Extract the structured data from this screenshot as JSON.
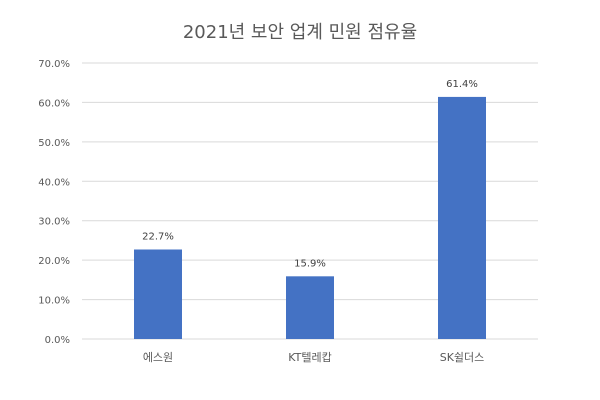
{
  "chart_data": {
    "type": "bar",
    "title": "2021년 보안 업계 민원 점유율",
    "categories": [
      "에스원",
      "KT텔레캅",
      "SK쉴더스"
    ],
    "values": [
      22.7,
      15.9,
      61.4
    ],
    "data_labels": [
      "22.7%",
      "15.9%",
      "61.4%"
    ],
    "y_ticks": [
      "0.0%",
      "10.0%",
      "20.0%",
      "30.0%",
      "40.0%",
      "50.0%",
      "60.0%",
      "70.0%"
    ],
    "ylim": [
      0,
      70
    ],
    "grid": true,
    "legend": "none",
    "bar_color": "#4472C4",
    "grid_color": "#D9D9D9"
  }
}
